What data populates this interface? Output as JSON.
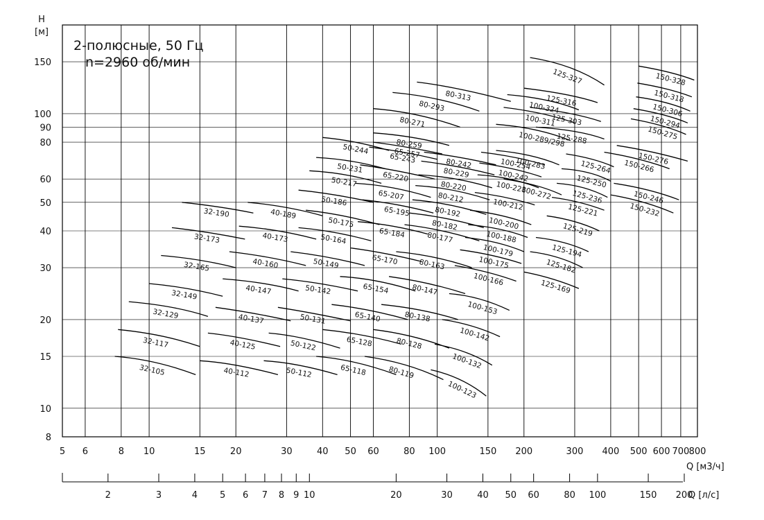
{
  "chart_data": {
    "type": "line",
    "title": "2-полюсные, 50 Гц",
    "subtitle": "n=2960 об/мин",
    "ylabel": "H",
    "yunit": "[м]",
    "xlabel": "Q [м3/ч]",
    "x2label": "Q [л/с]",
    "xscale": "log",
    "yscale": "log",
    "xlim": [
      5,
      800
    ],
    "ylim": [
      8,
      200
    ],
    "grid": true,
    "x_ticks": [
      "5",
      "6",
      "8",
      "10",
      "15",
      "20",
      "30",
      "40",
      "50",
      "60",
      "80",
      "100",
      "150",
      "200",
      "300",
      "400",
      "500",
      "600",
      "700",
      "800"
    ],
    "y_ticks": [
      "8",
      "10",
      "15",
      "20",
      "30",
      "40",
      "50",
      "60",
      "80",
      "90",
      "100",
      "150"
    ],
    "x2_ticks": [
      "2",
      "3",
      "4",
      "5",
      "6",
      "7",
      "8",
      "9",
      "10",
      "20",
      "30",
      "40",
      "50",
      "60",
      "80",
      "100",
      "150",
      "200"
    ],
    "series": [
      {
        "name": "32-105",
        "q": [
          7.6,
          10.5,
          14.5
        ],
        "h": [
          15,
          14.3,
          13
        ]
      },
      {
        "name": "32-117",
        "q": [
          7.8,
          11,
          15
        ],
        "h": [
          18.5,
          17.6,
          16.2
        ]
      },
      {
        "name": "32-129",
        "q": [
          8.5,
          12,
          16
        ],
        "h": [
          23,
          22,
          20.5
        ]
      },
      {
        "name": "32-149",
        "q": [
          10,
          13.5,
          18
        ],
        "h": [
          26.5,
          25.5,
          24
        ]
      },
      {
        "name": "32-165",
        "q": [
          11,
          15,
          20
        ],
        "h": [
          33,
          31.8,
          30
        ]
      },
      {
        "name": "32-173",
        "q": [
          12,
          16,
          21.5
        ],
        "h": [
          41,
          39.5,
          37.5
        ]
      },
      {
        "name": "32-190",
        "q": [
          13,
          17.5,
          23
        ],
        "h": [
          50,
          48.2,
          46
        ]
      },
      {
        "name": "40-112",
        "q": [
          15,
          20,
          28
        ],
        "h": [
          14.5,
          14,
          13
        ]
      },
      {
        "name": "40-125",
        "q": [
          16,
          21,
          28.5
        ],
        "h": [
          18,
          17.3,
          16.2
        ]
      },
      {
        "name": "40-137",
        "q": [
          17,
          23,
          31
        ],
        "h": [
          22,
          21,
          19.8
        ]
      },
      {
        "name": "40-147",
        "q": [
          18,
          25,
          33
        ],
        "h": [
          27.5,
          26.5,
          25
        ]
      },
      {
        "name": "40-160",
        "q": [
          19,
          26,
          35
        ],
        "h": [
          34,
          32.5,
          30.5
        ]
      },
      {
        "name": "40-173",
        "q": [
          20.5,
          28,
          38
        ],
        "h": [
          41.5,
          40,
          37.5
        ]
      },
      {
        "name": "40-189",
        "q": [
          22,
          30,
          40
        ],
        "h": [
          50,
          48,
          45
        ]
      },
      {
        "name": "50-112",
        "q": [
          25,
          33,
          45
        ],
        "h": [
          14.5,
          14,
          13
        ]
      },
      {
        "name": "50-122",
        "q": [
          26,
          34,
          46
        ],
        "h": [
          18,
          17.3,
          16
        ]
      },
      {
        "name": "50-131",
        "q": [
          28,
          37,
          50
        ],
        "h": [
          22,
          21,
          19.8
        ]
      },
      {
        "name": "50-142",
        "q": [
          29,
          39,
          53
        ],
        "h": [
          27.5,
          26.5,
          25
        ]
      },
      {
        "name": "50-149",
        "q": [
          31,
          42,
          56
        ],
        "h": [
          34,
          32.5,
          30.5
        ]
      },
      {
        "name": "50-164",
        "q": [
          33,
          44,
          59
        ],
        "h": [
          41,
          39.5,
          37
        ]
      },
      {
        "name": "50-175",
        "q": [
          35,
          47,
          63
        ],
        "h": [
          47,
          45,
          42
        ]
      },
      {
        "name": "50-186",
        "q": [
          33,
          44,
          60
        ],
        "h": [
          55,
          53,
          50
        ]
      },
      {
        "name": "50-217",
        "q": [
          36,
          48,
          64
        ],
        "h": [
          64,
          62,
          58
        ]
      },
      {
        "name": "50-231",
        "q": [
          38,
          50,
          66
        ],
        "h": [
          71,
          69,
          65
        ]
      },
      {
        "name": "50-244",
        "q": [
          40,
          52,
          68
        ],
        "h": [
          83,
          80,
          75
        ]
      },
      {
        "name": "65-118",
        "q": [
          38,
          52,
          72
        ],
        "h": [
          15,
          14.3,
          13
        ]
      },
      {
        "name": "65-128",
        "q": [
          40,
          55,
          75
        ],
        "h": [
          18.5,
          17.7,
          16.5
        ]
      },
      {
        "name": "65-140",
        "q": [
          43,
          58,
          79
        ],
        "h": [
          22.5,
          21.5,
          20
        ]
      },
      {
        "name": "65-154",
        "q": [
          46,
          62,
          84
        ],
        "h": [
          28,
          27,
          25
        ]
      },
      {
        "name": "65-170",
        "q": [
          50,
          66,
          88
        ],
        "h": [
          35,
          33.5,
          31.5
        ]
      },
      {
        "name": "65-184",
        "q": [
          53,
          70,
          93
        ],
        "h": [
          43,
          41.5,
          39
        ]
      },
      {
        "name": "65-195",
        "q": [
          55,
          73,
          97
        ],
        "h": [
          51,
          49,
          46
        ]
      },
      {
        "name": "65-207",
        "q": [
          52,
          70,
          95
        ],
        "h": [
          58,
          56,
          52
        ]
      },
      {
        "name": "65-220",
        "q": [
          54,
          72,
          98
        ],
        "h": [
          67,
          64,
          60
        ]
      },
      {
        "name": "65-243",
        "q": [
          58,
          76,
          100
        ],
        "h": [
          77,
          74,
          70
        ]
      },
      {
        "name": "65-257",
        "q": [
          60,
          78,
          104
        ],
        "h": [
          80,
          77,
          73
        ]
      },
      {
        "name": "80-119",
        "q": [
          56,
          78,
          105
        ],
        "h": [
          15,
          14,
          12.5
        ]
      },
      {
        "name": "80-128",
        "q": [
          60,
          82,
          110
        ],
        "h": [
          18.5,
          17.5,
          16
        ]
      },
      {
        "name": "80-138",
        "q": [
          64,
          88,
          118
        ],
        "h": [
          22.5,
          21.5,
          20
        ]
      },
      {
        "name": "80-147",
        "q": [
          68,
          93,
          125
        ],
        "h": [
          28,
          26.5,
          24.5
        ]
      },
      {
        "name": "80-163",
        "q": [
          72,
          98,
          132
        ],
        "h": [
          34,
          32.5,
          30
        ]
      },
      {
        "name": "80-177",
        "q": [
          77,
          104,
          140
        ],
        "h": [
          42,
          40,
          37
        ]
      },
      {
        "name": "80-182",
        "q": [
          80,
          108,
          145
        ],
        "h": [
          46,
          44,
          41
        ]
      },
      {
        "name": "80-192",
        "q": [
          82,
          110,
          148
        ],
        "h": [
          51,
          49,
          45.5
        ]
      },
      {
        "name": "80-212",
        "q": [
          84,
          113,
          152
        ],
        "h": [
          57,
          55,
          51
        ]
      },
      {
        "name": "80-220",
        "q": [
          86,
          116,
          155
        ],
        "h": [
          62,
          60,
          56
        ]
      },
      {
        "name": "80-229",
        "q": [
          88,
          118,
          158
        ],
        "h": [
          69,
          66,
          62
        ]
      },
      {
        "name": "80-242",
        "q": [
          90,
          120,
          160
        ],
        "h": [
          74,
          71,
          67
        ]
      },
      {
        "name": "80-259",
        "q": [
          60,
          82,
          110
        ],
        "h": [
          86,
          83,
          78
        ]
      },
      {
        "name": "80-271",
        "q": [
          60,
          85,
          120
        ],
        "h": [
          104,
          99,
          90
        ]
      },
      {
        "name": "80-293",
        "q": [
          70,
          100,
          140
        ],
        "h": [
          118,
          112,
          102
        ]
      },
      {
        "name": "80-313",
        "q": [
          85,
          120,
          180
        ],
        "h": [
          128,
          121,
          110
        ]
      },
      {
        "name": "100-123",
        "q": [
          95,
          120,
          148
        ],
        "h": [
          13.5,
          12.5,
          11
        ]
      },
      {
        "name": "100-132",
        "q": [
          98,
          125,
          155
        ],
        "h": [
          16.5,
          15.5,
          14
        ]
      },
      {
        "name": "100-142",
        "q": [
          104,
          132,
          165
        ],
        "h": [
          20,
          19,
          17.5
        ]
      },
      {
        "name": "100-153",
        "q": [
          110,
          140,
          178
        ],
        "h": [
          24.5,
          23.5,
          21.5
        ]
      },
      {
        "name": "100-166",
        "q": [
          115,
          148,
          188
        ],
        "h": [
          30.5,
          29,
          27
        ]
      },
      {
        "name": "100-175",
        "q": [
          120,
          155,
          196
        ],
        "h": [
          34.5,
          33,
          31
        ]
      },
      {
        "name": "100-179",
        "q": [
          125,
          160,
          200
        ],
        "h": [
          38,
          36.5,
          34
        ]
      },
      {
        "name": "100-188",
        "q": [
          128,
          165,
          206
        ],
        "h": [
          42,
          40.5,
          38
        ]
      },
      {
        "name": "100-200",
        "q": [
          130,
          168,
          212
        ],
        "h": [
          47,
          45,
          42
        ]
      },
      {
        "name": "100-212",
        "q": [
          135,
          172,
          218
        ],
        "h": [
          54,
          52,
          49
        ]
      },
      {
        "name": "100-228",
        "q": [
          138,
          178,
          225
        ],
        "h": [
          62,
          60,
          56
        ]
      },
      {
        "name": "100-242",
        "q": [
          140,
          182,
          230
        ],
        "h": [
          68,
          65,
          61
        ]
      },
      {
        "name": "100-254",
        "q": [
          142,
          186,
          236
        ],
        "h": [
          74,
          71,
          67
        ]
      },
      {
        "name": "100-272",
        "q": [
          170,
          220,
          270
        ],
        "h": [
          60,
          57,
          53
        ]
      },
      {
        "name": "100-283",
        "q": [
          160,
          210,
          265
        ],
        "h": [
          75,
          72,
          67
        ]
      },
      {
        "name": "100-289/298",
        "q": [
          160,
          220,
          290
        ],
        "h": [
          92,
          88,
          81
        ]
      },
      {
        "name": "100-311",
        "q": [
          170,
          230,
          300
        ],
        "h": [
          105,
          100,
          93
        ]
      },
      {
        "name": "100-324",
        "q": [
          175,
          240,
          310
        ],
        "h": [
          116,
          111,
          103
        ]
      },
      {
        "name": "125-169",
        "q": [
          200,
          250,
          310
        ],
        "h": [
          29,
          27.5,
          25.5
        ]
      },
      {
        "name": "125-182",
        "q": [
          210,
          262,
          320
        ],
        "h": [
          34,
          32.5,
          30
        ]
      },
      {
        "name": "125-194",
        "q": [
          220,
          275,
          335
        ],
        "h": [
          38,
          36.5,
          34
        ]
      },
      {
        "name": "125-219",
        "q": [
          240,
          300,
          365
        ],
        "h": [
          45,
          43,
          40
        ]
      },
      {
        "name": "125-221",
        "q": [
          250,
          310,
          380
        ],
        "h": [
          52,
          50,
          47
        ]
      },
      {
        "name": "125-236",
        "q": [
          260,
          322,
          390
        ],
        "h": [
          58,
          56,
          52
        ]
      },
      {
        "name": "125-250",
        "q": [
          270,
          335,
          400
        ],
        "h": [
          65,
          63,
          59
        ]
      },
      {
        "name": "125-264",
        "q": [
          280,
          345,
          410
        ],
        "h": [
          73,
          70,
          66
        ]
      },
      {
        "name": "125-288",
        "q": [
          220,
          300,
          380
        ],
        "h": [
          90,
          87,
          82
        ]
      },
      {
        "name": "125-303",
        "q": [
          210,
          290,
          370
        ],
        "h": [
          105,
          100,
          94
        ]
      },
      {
        "name": "125-316",
        "q": [
          200,
          280,
          360
        ],
        "h": [
          122,
          116,
          109
        ]
      },
      {
        "name": "125-327",
        "q": [
          210,
          290,
          380
        ],
        "h": [
          155,
          143,
          125
        ]
      },
      {
        "name": "150-232",
        "q": [
          400,
          520,
          660
        ],
        "h": [
          53,
          50,
          46
        ]
      },
      {
        "name": "150-246",
        "q": [
          410,
          540,
          690
        ],
        "h": [
          58,
          55,
          51
        ]
      },
      {
        "name": "150-266",
        "q": [
          380,
          500,
          640
        ],
        "h": [
          74,
          70,
          65
        ]
      },
      {
        "name": "150-276",
        "q": [
          420,
          560,
          740
        ],
        "h": [
          78,
          74,
          69
        ]
      },
      {
        "name": "150-275",
        "q": [
          470,
          600,
          730
        ],
        "h": [
          96,
          91,
          85
        ]
      },
      {
        "name": "150-294",
        "q": [
          480,
          610,
          740
        ],
        "h": [
          104,
          99,
          93
        ]
      },
      {
        "name": "150-306",
        "q": [
          490,
          620,
          755
        ],
        "h": [
          114,
          109,
          102
        ]
      },
      {
        "name": "150-318",
        "q": [
          495,
          630,
          765
        ],
        "h": [
          127,
          121,
          114
        ]
      },
      {
        "name": "150-328",
        "q": [
          500,
          640,
          780
        ],
        "h": [
          145,
          138,
          130
        ]
      }
    ]
  }
}
